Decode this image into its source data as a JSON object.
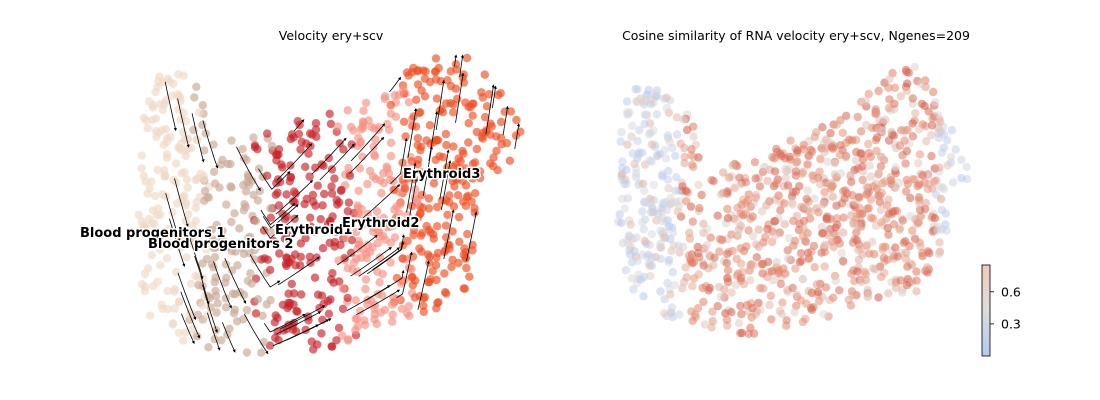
{
  "chart_data": [
    {
      "type": "scatter",
      "title": "Velocity ery+scv",
      "xlabel": "",
      "ylabel": "",
      "grid": false,
      "axes_visible": false,
      "overlay": "velocity-streamlines",
      "clusters": [
        {
          "label": "Blood progenitors 1",
          "color": "#f0d9c6"
        },
        {
          "label": "Blood progenitors 2",
          "color": "#c9a794"
        },
        {
          "label": "Erythroid1",
          "color": "#c72228"
        },
        {
          "label": "Erythroid2",
          "color": "#f79083"
        },
        {
          "label": "Erythroid3",
          "color": "#ef4e22"
        }
      ]
    },
    {
      "type": "scatter",
      "title": "Cosine similarity of RNA velocity ery+scv, Ngenes=209",
      "xlabel": "",
      "ylabel": "",
      "grid": false,
      "axes_visible": false,
      "colormap": "coolwarm",
      "colorbar": {
        "ticks": [
          0.3,
          0.6
        ],
        "tick_labels": [
          "0.3",
          "0.6"
        ],
        "range": [
          0.0,
          0.85
        ],
        "colors": [
          "#b6c8f2",
          "#dddcdc",
          "#f2c9b8"
        ]
      }
    }
  ]
}
